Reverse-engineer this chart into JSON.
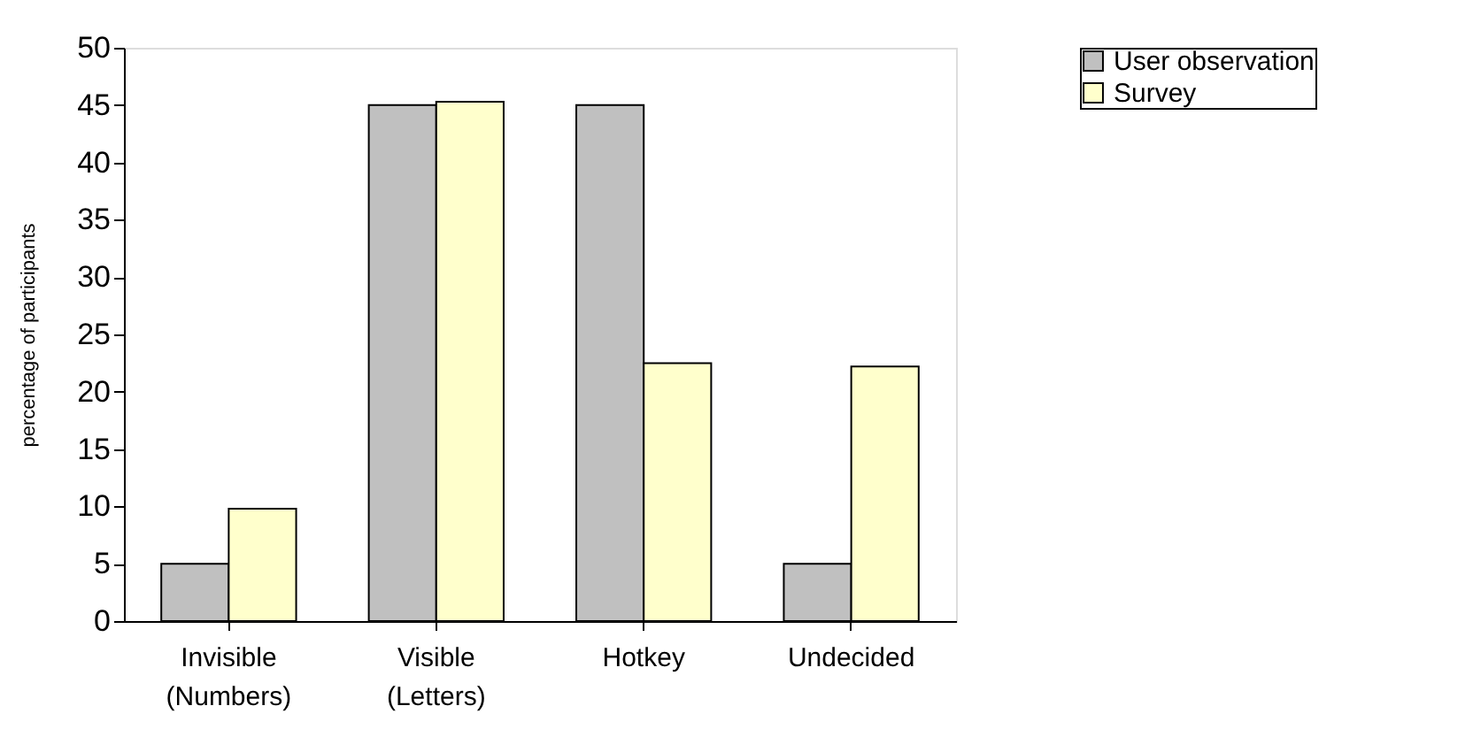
{
  "chart_data": {
    "type": "bar",
    "ylabel": "percentage of participants",
    "categories": [
      "Invisible\n(Numbers)",
      "Visible\n(Letters)",
      "Hotkey",
      "Undecided"
    ],
    "series": [
      {
        "name": "User observation",
        "color": "#c0c0c0",
        "values": [
          5,
          45,
          45,
          5
        ]
      },
      {
        "name": "Survey",
        "color": "#ffffcc",
        "values": [
          9.8,
          45.3,
          22.5,
          22.2
        ]
      }
    ],
    "ylim": [
      0,
      50
    ],
    "yticks": [
      0,
      5,
      10,
      15,
      20,
      25,
      30,
      35,
      40,
      45,
      50
    ],
    "grid": false,
    "legend": "top right"
  }
}
